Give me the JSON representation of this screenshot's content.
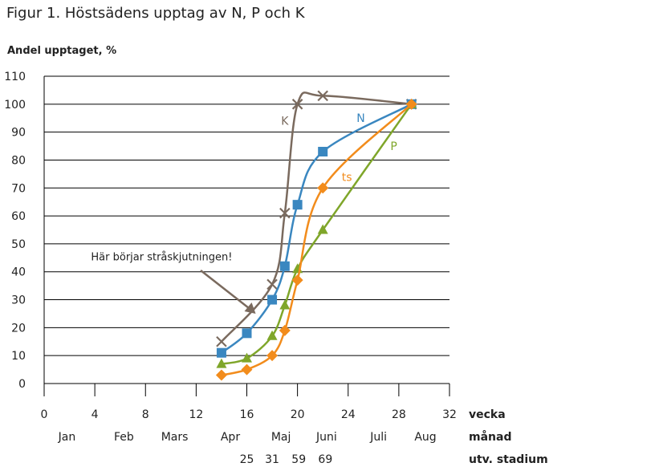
{
  "title": "Figur 1. Höstsädens upptag av N, P och K",
  "chart_data": {
    "type": "line",
    "title": "Figur 1. Höstsädens upptag av N, P och K",
    "ylabel": "Andel upptaget, %",
    "xlabel": "vecka",
    "xlim": [
      0,
      32
    ],
    "ylim": [
      0,
      110
    ],
    "xticks": [
      0,
      4,
      8,
      12,
      16,
      20,
      24,
      28,
      32
    ],
    "yticks": [
      0,
      10,
      20,
      30,
      40,
      50,
      60,
      70,
      80,
      90,
      100,
      110
    ],
    "grid": "horizontal",
    "month_row": {
      "label": "månad",
      "items": [
        {
          "label": "Jan",
          "week": 1.8
        },
        {
          "label": "Feb",
          "week": 6.3
        },
        {
          "label": "Mars",
          "week": 10.3
        },
        {
          "label": "Apr",
          "week": 14.7
        },
        {
          "label": "Maj",
          "week": 18.7
        },
        {
          "label": "Juni",
          "week": 22.3
        },
        {
          "label": "Juli",
          "week": 26.4
        },
        {
          "label": "Aug",
          "week": 30.1
        }
      ]
    },
    "stage_row": {
      "label": "utv. stadium",
      "items": [
        {
          "label": "25",
          "week": 16
        },
        {
          "label": "31",
          "week": 18
        },
        {
          "label": "59",
          "week": 20.1
        },
        {
          "label": "69",
          "week": 22.2
        }
      ]
    },
    "series": [
      {
        "name": "K",
        "color": "#7a6a5e",
        "marker": "x",
        "x": [
          14,
          18,
          19,
          20,
          22,
          29
        ],
        "y": [
          15,
          35.5,
          61,
          100,
          103,
          100
        ],
        "label_at": [
          19,
          94
        ]
      },
      {
        "name": "N",
        "color": "#3a87c0",
        "marker": "square",
        "x": [
          14,
          16,
          18,
          19,
          20,
          22,
          29
        ],
        "y": [
          11,
          18,
          30,
          42,
          64,
          83,
          100
        ],
        "label_at": [
          25,
          95
        ]
      },
      {
        "name": "P",
        "color": "#7fa62a",
        "marker": "triangle",
        "x": [
          14,
          16,
          18,
          19,
          20,
          22,
          29
        ],
        "y": [
          7,
          9,
          17,
          28,
          41,
          55,
          100
        ],
        "label_at": [
          27.6,
          85
        ]
      },
      {
        "name": "ts",
        "color": "#f28c1c",
        "marker": "diamond",
        "x": [
          14,
          16,
          18,
          19,
          20,
          22,
          29
        ],
        "y": [
          3,
          5,
          10,
          19,
          37,
          70,
          100
        ],
        "label_at": [
          23.9,
          74
        ]
      }
    ],
    "annotation": {
      "text": "Här börjar stråskjutningen!",
      "arrow_to": [
        16.7,
        25
      ],
      "text_at": [
        3.7,
        45.5
      ]
    }
  }
}
